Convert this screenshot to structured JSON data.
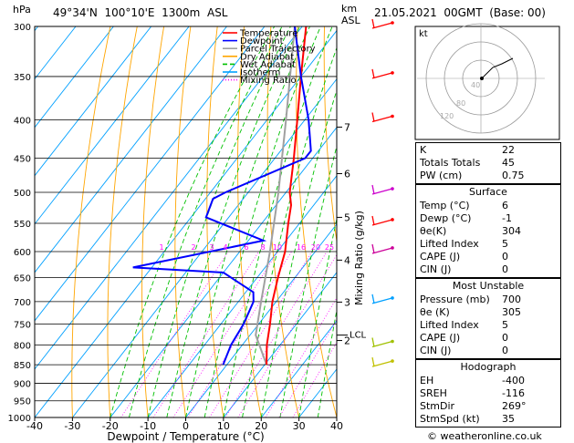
{
  "header": {
    "hpa_label": "hPa",
    "location": "49°34'N  100°10'E  1300m  ASL",
    "km_label": "km",
    "asl_label": "ASL",
    "datetime": "21.05.2021  00GMT  (Base: 00)"
  },
  "legend": [
    "Temperature",
    "Dewpoint",
    "Parcel Trajectory",
    "Dry Adiabat",
    "Wet Adiabat",
    "Isotherm",
    "Mixing Ratio"
  ],
  "colors": {
    "temperature": "#ff0000",
    "dewpoint": "#0000ff",
    "parcel": "#a0a0a0",
    "dry_adiabat": "#ffa500",
    "wet_adiabat": "#00c000",
    "isotherm": "#00a0ff",
    "mixing_ratio": "#ff00ff"
  },
  "chart_data": {
    "type": "skew-t log-p",
    "xlabel": "Dewpoint / Temperature (°C)",
    "ylabel": "hPa",
    "right_axis_label": "Mixing Ratio (g/kg)",
    "x_ticks": [
      -40,
      -30,
      -20,
      -10,
      0,
      10,
      20,
      30,
      40
    ],
    "pressure_levels": [
      300,
      350,
      400,
      450,
      500,
      550,
      600,
      650,
      700,
      750,
      800,
      850,
      900,
      950,
      1000
    ],
    "km_ticks": [
      {
        "km": "7",
        "p": 409
      },
      {
        "km": "6",
        "p": 472
      },
      {
        "km": "5",
        "p": 540
      },
      {
        "km": "4",
        "p": 616
      },
      {
        "km": "3",
        "p": 701
      },
      {
        "km": "2",
        "p": 789
      }
    ],
    "lcl": {
      "label": "LCL",
      "p": 776
    },
    "mixing_ratio_labels": [
      "1",
      "2",
      "3",
      "4",
      "6",
      "8",
      "10",
      "16",
      "20",
      "25"
    ],
    "temperature": [
      {
        "p": 850,
        "t": 10.5
      },
      {
        "p": 800,
        "t": 6.5
      },
      {
        "p": 750,
        "t": 3
      },
      {
        "p": 700,
        "t": -1
      },
      {
        "p": 650,
        "t": -4.5
      },
      {
        "p": 600,
        "t": -8
      },
      {
        "p": 550,
        "t": -13
      },
      {
        "p": 520,
        "t": -16
      },
      {
        "p": 500,
        "t": -19
      },
      {
        "p": 450,
        "t": -25
      },
      {
        "p": 400,
        "t": -32
      },
      {
        "p": 350,
        "t": -40
      },
      {
        "p": 300,
        "t": -49
      }
    ],
    "dewpoint": [
      {
        "p": 850,
        "t": -1
      },
      {
        "p": 800,
        "t": -3
      },
      {
        "p": 750,
        "t": -4
      },
      {
        "p": 700,
        "t": -6
      },
      {
        "p": 680,
        "t": -8
      },
      {
        "p": 640,
        "t": -20
      },
      {
        "p": 630,
        "t": -45
      },
      {
        "p": 580,
        "t": -16
      },
      {
        "p": 540,
        "t": -36
      },
      {
        "p": 510,
        "t": -38
      },
      {
        "p": 500,
        "t": -36
      },
      {
        "p": 450,
        "t": -22
      },
      {
        "p": 440,
        "t": -22
      },
      {
        "p": 400,
        "t": -29
      },
      {
        "p": 350,
        "t": -40
      },
      {
        "p": 300,
        "t": -52
      }
    ],
    "parcel": [
      {
        "p": 850,
        "t": 10.5
      },
      {
        "p": 776,
        "t": 1.5
      },
      {
        "p": 700,
        "t": -4
      },
      {
        "p": 600,
        "t": -12
      },
      {
        "p": 500,
        "t": -22
      },
      {
        "p": 400,
        "t": -35
      },
      {
        "p": 300,
        "t": -52
      }
    ],
    "hodograph": {
      "label": "kt",
      "rings": [
        "40",
        "80",
        "120"
      ]
    }
  },
  "indices": [
    {
      "k": "K",
      "v": "22"
    },
    {
      "k": "Totals Totals",
      "v": "45"
    },
    {
      "k": "PW (cm)",
      "v": "0.75"
    }
  ],
  "surface": {
    "title": "Surface",
    "rows": [
      {
        "k": "Temp (°C)",
        "v": "6"
      },
      {
        "k": "Dewp (°C)",
        "v": "-1"
      },
      {
        "k": "θe(K)",
        "v": "304"
      },
      {
        "k": "Lifted Index",
        "v": "5"
      },
      {
        "k": "CAPE (J)",
        "v": "0"
      },
      {
        "k": "CIN (J)",
        "v": "0"
      }
    ]
  },
  "most_unstable": {
    "title": "Most Unstable",
    "rows": [
      {
        "k": "Pressure (mb)",
        "v": "700"
      },
      {
        "k": "θe (K)",
        "v": "305"
      },
      {
        "k": "Lifted Index",
        "v": "5"
      },
      {
        "k": "CAPE (J)",
        "v": "0"
      },
      {
        "k": "CIN (J)",
        "v": "0"
      }
    ]
  },
  "hodograph_table": {
    "title": "Hodograph",
    "rows": [
      {
        "k": "EH",
        "v": "-400"
      },
      {
        "k": "SREH",
        "v": "-116"
      },
      {
        "k": "StmDir",
        "v": "269°"
      },
      {
        "k": "StmSpd (kt)",
        "v": "35"
      }
    ]
  },
  "footer": "© weatheronline.co.uk"
}
